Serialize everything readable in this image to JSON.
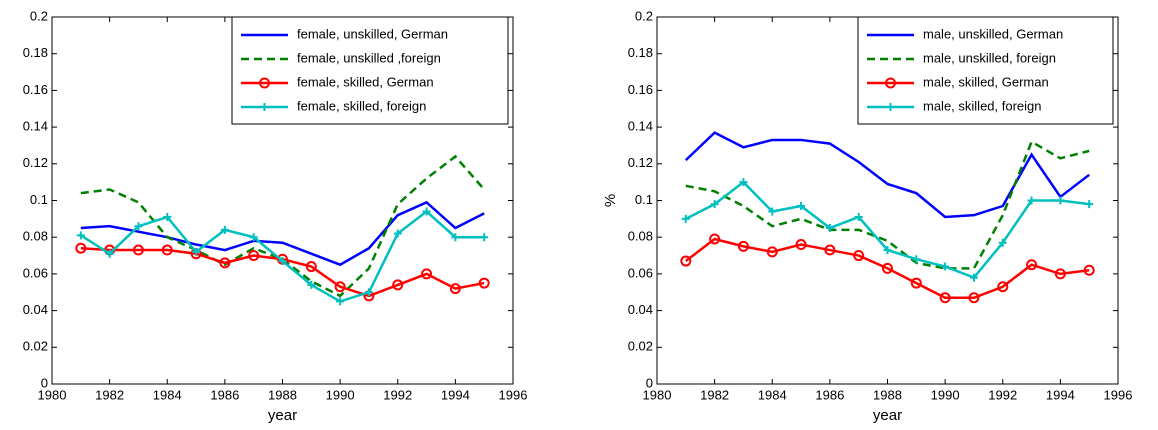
{
  "chart_data": [
    {
      "type": "line",
      "x": [
        1981,
        1982,
        1983,
        1984,
        1985,
        1986,
        1987,
        1988,
        1989,
        1990,
        1991,
        1992,
        1993,
        1994,
        1995
      ],
      "xlabel": "year",
      "xlim": [
        1980,
        1996
      ],
      "xticks": [
        1980,
        1982,
        1984,
        1986,
        1988,
        1990,
        1992,
        1994,
        1996
      ],
      "ylim": [
        0,
        0.2
      ],
      "yticks": [
        0,
        0.02,
        0.04,
        0.06,
        0.08,
        0.1,
        0.12,
        0.14,
        0.16,
        0.18,
        0.2
      ],
      "legend": "upper right",
      "series": [
        {
          "name": "female, unskilled, German",
          "color": "#0000ff",
          "linestyle": "solid",
          "marker": "none",
          "values": [
            0.085,
            0.086,
            0.083,
            0.08,
            0.076,
            0.073,
            0.078,
            0.077,
            0.071,
            0.065,
            0.074,
            0.092,
            0.099,
            0.085,
            0.093
          ]
        },
        {
          "name": "female, unskilled ,foreign",
          "color": "#008000",
          "linestyle": "dashed",
          "marker": "none",
          "values": [
            0.104,
            0.106,
            0.099,
            0.08,
            0.073,
            0.065,
            0.074,
            0.068,
            0.056,
            0.048,
            0.063,
            0.098,
            0.112,
            0.124,
            0.106
          ]
        },
        {
          "name": "female, skilled, German",
          "color": "#ff0000",
          "linestyle": "solid",
          "marker": "circle",
          "values": [
            0.074,
            0.073,
            0.073,
            0.073,
            0.071,
            0.066,
            0.07,
            0.068,
            0.064,
            0.053,
            0.048,
            0.054,
            0.06,
            0.052,
            0.055
          ]
        },
        {
          "name": "female, skilled, foreign",
          "color": "#00bfbf",
          "linestyle": "solid",
          "marker": "plus",
          "values": [
            0.081,
            0.071,
            0.086,
            0.091,
            0.072,
            0.084,
            0.08,
            0.067,
            0.054,
            0.045,
            0.05,
            0.082,
            0.094,
            0.08,
            0.08
          ]
        }
      ]
    },
    {
      "type": "line",
      "x": [
        1981,
        1982,
        1983,
        1984,
        1985,
        1986,
        1987,
        1988,
        1989,
        1990,
        1991,
        1992,
        1993,
        1994,
        1995
      ],
      "xlabel": "year",
      "ylabel": "%",
      "xlim": [
        1980,
        1996
      ],
      "xticks": [
        1980,
        1982,
        1984,
        1986,
        1988,
        1990,
        1992,
        1994,
        1996
      ],
      "ylim": [
        0,
        0.2
      ],
      "yticks": [
        0,
        0.02,
        0.04,
        0.06,
        0.08,
        0.1,
        0.12,
        0.14,
        0.16,
        0.18,
        0.2
      ],
      "legend": "upper right",
      "series": [
        {
          "name": "male, unskilled, German",
          "color": "#0000ff",
          "linestyle": "solid",
          "marker": "none",
          "values": [
            0.122,
            0.137,
            0.129,
            0.133,
            0.133,
            0.131,
            0.121,
            0.109,
            0.104,
            0.091,
            0.092,
            0.097,
            0.125,
            0.102,
            0.114
          ]
        },
        {
          "name": "male, unskilled, foreign",
          "color": "#008000",
          "linestyle": "dashed",
          "marker": "none",
          "values": [
            0.108,
            0.105,
            0.097,
            0.086,
            0.09,
            0.084,
            0.084,
            0.078,
            0.066,
            0.063,
            0.063,
            0.092,
            0.132,
            0.123,
            0.127
          ]
        },
        {
          "name": "male, skilled, German",
          "color": "#ff0000",
          "linestyle": "solid",
          "marker": "circle",
          "values": [
            0.067,
            0.079,
            0.075,
            0.072,
            0.076,
            0.073,
            0.07,
            0.063,
            0.055,
            0.047,
            0.047,
            0.053,
            0.065,
            0.06,
            0.062
          ]
        },
        {
          "name": "male, skilled, foreign",
          "color": "#00bfbf",
          "linestyle": "solid",
          "marker": "plus",
          "values": [
            0.09,
            0.098,
            0.11,
            0.094,
            0.097,
            0.085,
            0.091,
            0.073,
            0.068,
            0.064,
            0.058,
            0.077,
            0.1,
            0.1,
            0.098
          ]
        }
      ]
    }
  ]
}
